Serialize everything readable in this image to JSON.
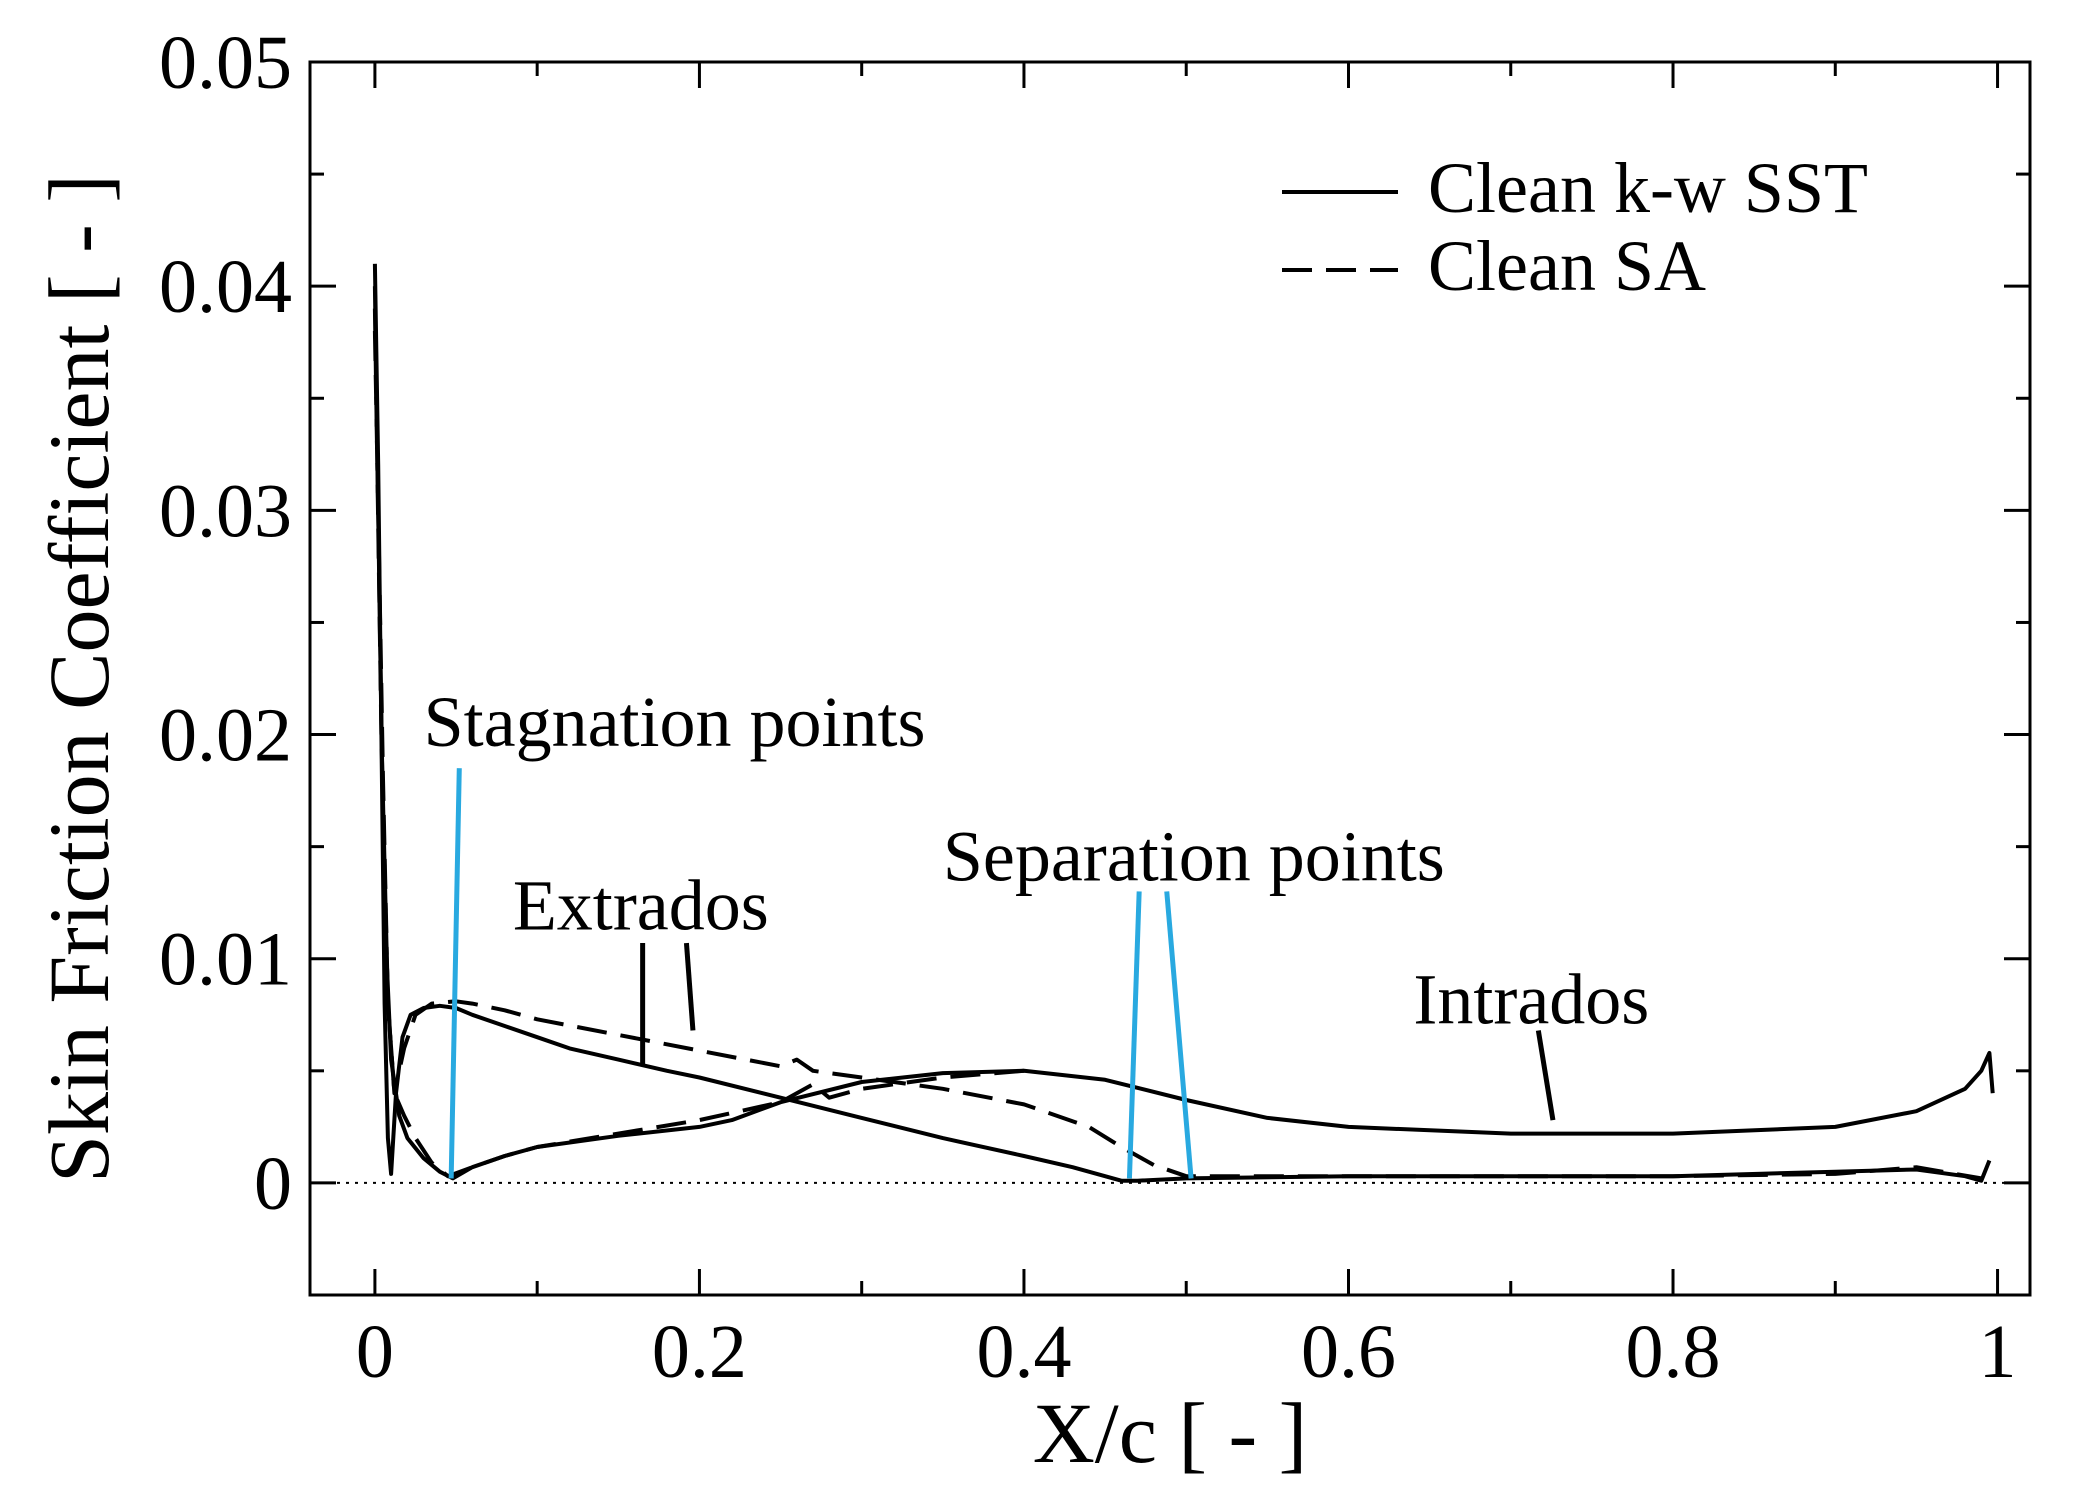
{
  "chart_data": {
    "type": "line",
    "xlabel": "X/c [ - ]",
    "ylabel": "Skin Friction Coefficient [ - ]",
    "xlim": [
      -0.04,
      1.02
    ],
    "ylim": [
      -0.005,
      0.05
    ],
    "xticks": [
      0,
      0.2,
      0.4,
      0.6,
      0.8,
      1
    ],
    "xtick_labels": [
      "0",
      "0.2",
      "0.4",
      "0.6",
      "0.8",
      "1"
    ],
    "yticks": [
      0,
      0.01,
      0.02,
      0.03,
      0.04,
      0.05
    ],
    "ytick_labels": [
      "0",
      "0.01",
      "0.02",
      "0.03",
      "0.04",
      "0.05"
    ],
    "grid": false,
    "legend_position": "top-right",
    "legend": [
      {
        "label": "Clean k-w SST",
        "style": "solid"
      },
      {
        "label": "Clean SA",
        "style": "dashed"
      }
    ],
    "series": [
      {
        "name": "Clean k-w SST (extrados)",
        "style": "solid",
        "color": "#000000",
        "x": [
          0.0,
          0.002,
          0.004,
          0.006,
          0.008,
          0.01,
          0.013,
          0.017,
          0.022,
          0.03,
          0.04,
          0.05,
          0.06,
          0.08,
          0.1,
          0.12,
          0.15,
          0.18,
          0.2,
          0.25,
          0.3,
          0.35,
          0.4,
          0.43,
          0.45,
          0.46,
          0.47,
          0.5,
          0.6,
          0.7,
          0.8,
          0.9,
          0.95,
          0.98,
          0.99,
          0.995
        ],
        "y": [
          0.041,
          0.032,
          0.02,
          0.008,
          0.002,
          0.0004,
          0.004,
          0.0065,
          0.0075,
          0.0078,
          0.0079,
          0.0078,
          0.0075,
          0.007,
          0.0065,
          0.006,
          0.0055,
          0.005,
          0.0047,
          0.0038,
          0.0029,
          0.002,
          0.0012,
          0.0007,
          0.0003,
          0.0001,
          0.0001,
          0.0002,
          0.0003,
          0.0003,
          0.0003,
          0.0005,
          0.0006,
          0.0003,
          0.0001,
          0.001
        ]
      },
      {
        "name": "Clean k-w SST (intrados)",
        "style": "solid",
        "color": "#000000",
        "x": [
          0.0,
          0.003,
          0.006,
          0.01,
          0.015,
          0.02,
          0.03,
          0.04,
          0.048,
          0.06,
          0.08,
          0.1,
          0.15,
          0.2,
          0.22,
          0.25,
          0.3,
          0.35,
          0.4,
          0.45,
          0.5,
          0.55,
          0.6,
          0.7,
          0.8,
          0.9,
          0.95,
          0.98,
          0.99,
          0.995,
          0.997
        ],
        "y": [
          0.04,
          0.025,
          0.012,
          0.0055,
          0.003,
          0.002,
          0.0011,
          0.0005,
          0.0002,
          0.0007,
          0.0012,
          0.0016,
          0.0021,
          0.0025,
          0.0028,
          0.0036,
          0.0045,
          0.0049,
          0.005,
          0.0046,
          0.0037,
          0.0029,
          0.0025,
          0.0022,
          0.0022,
          0.0025,
          0.0032,
          0.0042,
          0.005,
          0.0058,
          0.004
        ]
      },
      {
        "name": "Clean SA (extrados)",
        "style": "dashed",
        "color": "#000000",
        "x": [
          0.0,
          0.002,
          0.005,
          0.008,
          0.012,
          0.018,
          0.025,
          0.035,
          0.05,
          0.06,
          0.08,
          0.1,
          0.15,
          0.2,
          0.25,
          0.26,
          0.27,
          0.3,
          0.35,
          0.4,
          0.44,
          0.46,
          0.48,
          0.5,
          0.6,
          0.7,
          0.8,
          0.9,
          0.95,
          0.99
        ],
        "y": [
          0.038,
          0.03,
          0.018,
          0.008,
          0.004,
          0.006,
          0.0075,
          0.008,
          0.0081,
          0.008,
          0.0077,
          0.0073,
          0.0066,
          0.0059,
          0.0052,
          0.0055,
          0.005,
          0.0047,
          0.0042,
          0.0035,
          0.0025,
          0.0016,
          0.0008,
          0.0003,
          0.0003,
          0.0003,
          0.0003,
          0.0004,
          0.0007,
          0.0002
        ]
      },
      {
        "name": "Clean SA (intrados)",
        "style": "dashed",
        "color": "#000000",
        "x": [
          0.0,
          0.004,
          0.008,
          0.012,
          0.018,
          0.025,
          0.035,
          0.045,
          0.06,
          0.08,
          0.1,
          0.15,
          0.2,
          0.25,
          0.27,
          0.28,
          0.3,
          0.35,
          0.4
        ],
        "y": [
          0.039,
          0.02,
          0.008,
          0.004,
          0.003,
          0.002,
          0.0009,
          0.0003,
          0.0007,
          0.0012,
          0.0016,
          0.0022,
          0.0028,
          0.0036,
          0.0044,
          0.0038,
          0.0042,
          0.0047,
          0.005
        ]
      }
    ],
    "reference_lines": [
      {
        "orientation": "horizontal",
        "y": 0,
        "style": "dotted"
      }
    ],
    "annotations": [
      {
        "text": "Stagnation points",
        "x": 0.03,
        "y": 0.0195
      },
      {
        "text": "Separation points",
        "x": 0.35,
        "y": 0.0135
      },
      {
        "text": "Extrados",
        "x": 0.085,
        "y": 0.0113
      },
      {
        "text": "Intrados",
        "x": 0.64,
        "y": 0.0071
      }
    ],
    "pointer_lines": [
      {
        "label": "Stagnation points",
        "color": "#29a9e0",
        "from": [
          0.052,
          0.0185
        ],
        "to": [
          0.047,
          0.0002
        ]
      },
      {
        "label": "Separation points",
        "color": "#29a9e0",
        "from": [
          0.471,
          0.013
        ],
        "to": [
          0.465,
          0.0002
        ]
      },
      {
        "label": "Separation points",
        "color": "#29a9e0",
        "from": [
          0.488,
          0.013
        ],
        "to": [
          0.503,
          0.0002
        ]
      },
      {
        "label": "Extrados",
        "color": "#000000",
        "from": [
          0.165,
          0.0107
        ],
        "to": [
          0.165,
          0.0052
        ]
      },
      {
        "label": "Extrados",
        "color": "#000000",
        "from": [
          0.192,
          0.0107
        ],
        "to": [
          0.196,
          0.0068
        ]
      },
      {
        "label": "Intrados",
        "color": "#000000",
        "from": [
          0.717,
          0.0068
        ],
        "to": [
          0.726,
          0.0028
        ]
      }
    ]
  }
}
